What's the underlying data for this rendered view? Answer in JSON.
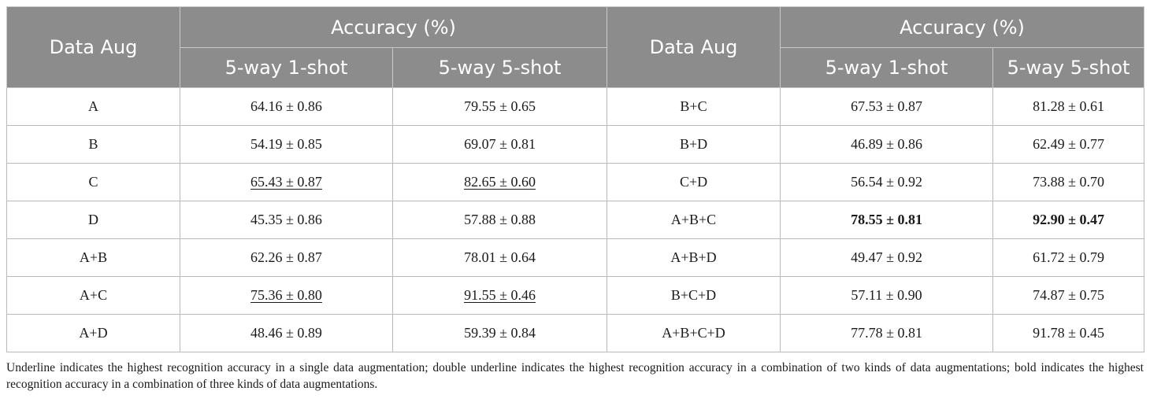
{
  "table": {
    "header": {
      "data_aug": "Data Aug",
      "accuracy": "Accuracy (%)",
      "one_shot": "5-way 1-shot",
      "five_shot": "5-way 5-shot"
    },
    "rows": [
      {
        "left": {
          "aug": "A",
          "one": "64.16 ± 0.86",
          "five": "79.55 ± 0.65",
          "one_style": "",
          "five_style": ""
        },
        "right": {
          "aug": "B+C",
          "one": "67.53 ± 0.87",
          "five": "81.28 ± 0.61",
          "one_style": "",
          "five_style": ""
        }
      },
      {
        "left": {
          "aug": "B",
          "one": "54.19 ± 0.85",
          "five": "69.07 ± 0.81",
          "one_style": "",
          "five_style": ""
        },
        "right": {
          "aug": "B+D",
          "one": "46.89 ± 0.86",
          "five": "62.49 ± 0.77",
          "one_style": "",
          "five_style": ""
        }
      },
      {
        "left": {
          "aug": "C",
          "one": "65.43 ± 0.87",
          "five": "82.65 ± 0.60",
          "one_style": "underline",
          "five_style": "underline"
        },
        "right": {
          "aug": "C+D",
          "one": "56.54 ± 0.92",
          "five": "73.88 ± 0.70",
          "one_style": "",
          "five_style": ""
        }
      },
      {
        "left": {
          "aug": "D",
          "one": "45.35 ± 0.86",
          "five": "57.88 ± 0.88",
          "one_style": "",
          "five_style": ""
        },
        "right": {
          "aug": "A+B+C",
          "one": "78.55 ± 0.81",
          "five": "92.90 ± 0.47",
          "one_style": "bold",
          "five_style": "bold"
        }
      },
      {
        "left": {
          "aug": "A+B",
          "one": "62.26 ± 0.87",
          "five": "78.01 ± 0.64",
          "one_style": "",
          "five_style": ""
        },
        "right": {
          "aug": "A+B+D",
          "one": "49.47 ± 0.92",
          "five": "61.72 ± 0.79",
          "one_style": "",
          "five_style": ""
        }
      },
      {
        "left": {
          "aug": "A+C",
          "one": "75.36 ± 0.80",
          "five": "91.55 ± 0.46",
          "one_style": "underline",
          "five_style": "underline"
        },
        "right": {
          "aug": "B+C+D",
          "one": "57.11 ± 0.90",
          "five": "74.87 ± 0.75",
          "one_style": "",
          "five_style": ""
        }
      },
      {
        "left": {
          "aug": "A+D",
          "one": "48.46 ± 0.89",
          "five": "59.39 ± 0.84",
          "one_style": "",
          "five_style": ""
        },
        "right": {
          "aug": "A+B+C+D",
          "one": "77.78 ± 0.81",
          "five": "91.78 ± 0.45",
          "one_style": "",
          "five_style": ""
        }
      }
    ]
  },
  "footnote": "Underline indicates the highest recognition accuracy in a single data augmentation; double underline indicates the highest recognition accuracy in a combination of two kinds of data augmentations; bold indicates the highest recognition accuracy in a combination of three kinds of data augmentations.",
  "colors": {
    "header_bg": "#8c8c8c",
    "header_text": "#ffffff",
    "border": "#b9b9b9"
  }
}
